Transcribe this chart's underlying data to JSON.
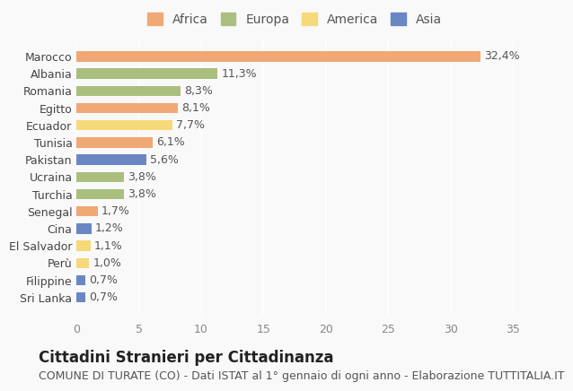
{
  "countries": [
    "Sri Lanka",
    "Filippine",
    "Perù",
    "El Salvador",
    "Cina",
    "Senegal",
    "Turchia",
    "Ucraina",
    "Pakistan",
    "Tunisia",
    "Ecuador",
    "Egitto",
    "Romania",
    "Albania",
    "Marocco"
  ],
  "values": [
    0.7,
    0.7,
    1.0,
    1.1,
    1.2,
    1.7,
    3.8,
    3.8,
    5.6,
    6.1,
    7.7,
    8.1,
    8.3,
    11.3,
    32.4
  ],
  "continents": [
    "Asia",
    "Asia",
    "America",
    "America",
    "Asia",
    "Africa",
    "Europa",
    "Europa",
    "Asia",
    "Africa",
    "America",
    "Africa",
    "Europa",
    "Europa",
    "Africa"
  ],
  "colors": {
    "Africa": "#F0A875",
    "Europa": "#AABF7E",
    "America": "#F5D97A",
    "Asia": "#6A87C3"
  },
  "legend_order": [
    "Africa",
    "Europa",
    "America",
    "Asia"
  ],
  "xlabel": "",
  "ylabel": "",
  "title": "Cittadini Stranieri per Cittadinanza",
  "subtitle": "COMUNE DI TURATE (CO) - Dati ISTAT al 1° gennaio di ogni anno - Elaborazione TUTTITALIA.IT",
  "xlim": [
    0,
    35
  ],
  "xticks": [
    0,
    5,
    10,
    15,
    20,
    25,
    30,
    35
  ],
  "background_color": "#f9f9f9",
  "bar_height": 0.6,
  "title_fontsize": 12,
  "subtitle_fontsize": 9,
  "label_fontsize": 9,
  "tick_fontsize": 9,
  "legend_fontsize": 10
}
